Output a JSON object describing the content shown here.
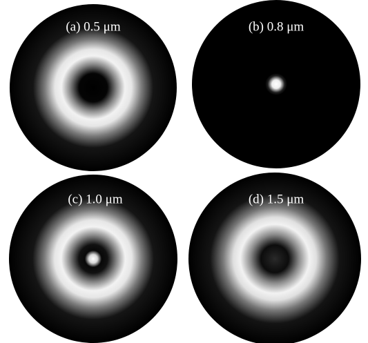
{
  "panels": [
    {
      "label": "(a) 0.5 μm"
    },
    {
      "label": "(b) 0.8 μm"
    },
    {
      "label": "(c) 1.0 μm"
    },
    {
      "label": "(d) 1.5 μm"
    }
  ]
}
